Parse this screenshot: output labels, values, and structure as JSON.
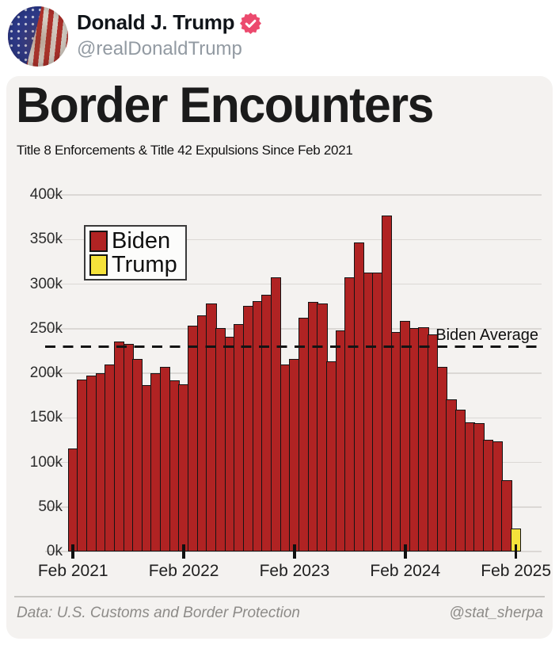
{
  "header": {
    "display_name": "Donald J. Trump",
    "handle": "@realDonaldTrump",
    "badge_color": "#ec4a6e"
  },
  "card": {
    "title": "Border Encounters",
    "subtitle": "Title 8 Enforcements & Title 42 Expulsions Since Feb 2021",
    "footer_source": "Data: U.S. Customs and Border Protection",
    "footer_credit": "@stat_sherpa"
  },
  "chart_data": {
    "type": "bar",
    "title": "Border Encounters",
    "subtitle": "Title 8 Enforcements & Title 42 Expulsions Since Feb 2021",
    "unit": "thousands of encounters per month",
    "months": [
      "Feb 2021",
      "Mar 2021",
      "Apr 2021",
      "May 2021",
      "Jun 2021",
      "Jul 2021",
      "Aug 2021",
      "Sep 2021",
      "Oct 2021",
      "Nov 2021",
      "Dec 2021",
      "Jan 2022",
      "Feb 2022",
      "Mar 2022",
      "Apr 2022",
      "May 2022",
      "Jun 2022",
      "Jul 2022",
      "Aug 2022",
      "Sep 2022",
      "Oct 2022",
      "Nov 2022",
      "Dec 2022",
      "Jan 2023",
      "Feb 2023",
      "Mar 2023",
      "Apr 2023",
      "May 2023",
      "Jun 2023",
      "Jul 2023",
      "Aug 2023",
      "Sep 2023",
      "Oct 2023",
      "Nov 2023",
      "Dec 2023",
      "Jan 2024",
      "Feb 2024",
      "Mar 2024",
      "Apr 2024",
      "May 2024",
      "Jun 2024",
      "Jul 2024",
      "Aug 2024",
      "Sep 2024",
      "Oct 2024",
      "Nov 2024",
      "Dec 2024",
      "Jan 2025",
      "Feb 2025"
    ],
    "values": [
      116,
      193,
      197,
      200,
      210,
      236,
      233,
      216,
      187,
      200,
      207,
      192,
      188,
      253,
      265,
      278,
      251,
      241,
      255,
      276,
      281,
      288,
      308,
      210,
      216,
      262,
      280,
      278,
      213,
      248,
      308,
      347,
      313,
      313,
      377,
      246,
      259,
      251,
      252,
      244,
      207,
      171,
      159,
      145,
      144,
      125,
      124,
      80,
      26
    ],
    "trump_month_index": 48,
    "legend": [
      {
        "label": "Biden",
        "color": "#b02323"
      },
      {
        "label": "Trump",
        "color": "#f5e23b"
      }
    ],
    "biden_average_label": "Biden Average",
    "biden_average_value": 230,
    "ylim": [
      0,
      400
    ],
    "yticks": [
      "0k",
      "50k",
      "100k",
      "150k",
      "200k",
      "250k",
      "300k",
      "350k",
      "400k"
    ],
    "ytick_values": [
      0,
      50,
      100,
      150,
      200,
      250,
      300,
      350,
      400
    ],
    "xticks": [
      "Feb 2021",
      "Feb 2022",
      "Feb 2023",
      "Feb 2024",
      "Feb 2025"
    ],
    "xtick_indices": [
      0,
      12,
      24,
      36,
      48
    ],
    "grid": "horizontal",
    "legend_position": "upper-left",
    "bar_border_color": "#141414",
    "background_color": "#f4f2f0"
  }
}
